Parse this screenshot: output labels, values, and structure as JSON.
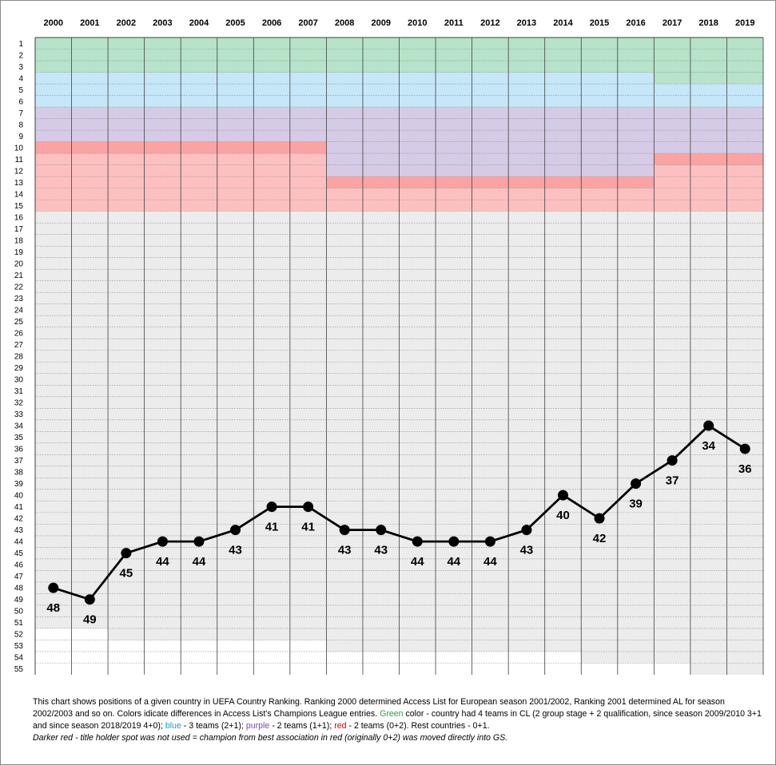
{
  "chart_data": {
    "type": "line",
    "x": [
      "2000",
      "2001",
      "2002",
      "2003",
      "2004",
      "2005",
      "2006",
      "2007",
      "2008",
      "2009",
      "2010",
      "2011",
      "2012",
      "2013",
      "2014",
      "2015",
      "2016",
      "2017",
      "2018",
      "2019"
    ],
    "series": [
      {
        "values": [
          48,
          49,
          45,
          44,
          44,
          43,
          41,
          41,
          43,
          43,
          44,
          44,
          44,
          43,
          40,
          42,
          39,
          37,
          34,
          36
        ]
      }
    ],
    "y_ticks": [
      "1",
      "2",
      "3",
      "4",
      "5",
      "6",
      "7",
      "8",
      "9",
      "10",
      "11",
      "12",
      "13",
      "14",
      "15",
      "16",
      "17",
      "18",
      "19",
      "20",
      "21",
      "22",
      "23",
      "24",
      "25",
      "26",
      "27",
      "28",
      "29",
      "30",
      "31",
      "32",
      "33",
      "34",
      "35",
      "36",
      "37",
      "38",
      "39",
      "40",
      "41",
      "42",
      "43",
      "44",
      "45",
      "46",
      "47",
      "48",
      "49",
      "50",
      "51",
      "52",
      "53",
      "54",
      "55"
    ],
    "ylim": [
      1,
      55
    ],
    "y_inverted": true,
    "grid": true,
    "line_color": "#000000",
    "zones": [
      {
        "name": "green",
        "color": "#b6e3c9",
        "start_year": "2000",
        "end_year": "2016",
        "from_rank": 1,
        "to_rank": 3
      },
      {
        "name": "green",
        "color": "#b6e3c9",
        "start_year": "2017",
        "end_year": "2019",
        "from_rank": 1,
        "to_rank": 4
      },
      {
        "name": "blue",
        "color": "#c6e7f8",
        "start_year": "2000",
        "end_year": "2016",
        "from_rank": 4,
        "to_rank": 6
      },
      {
        "name": "blue",
        "color": "#c6e7f8",
        "start_year": "2017",
        "end_year": "2019",
        "from_rank": 5,
        "to_rank": 6
      },
      {
        "name": "purple",
        "color": "#d6cbe6",
        "start_year": "2000",
        "end_year": "2007",
        "from_rank": 7,
        "to_rank": 9
      },
      {
        "name": "purple",
        "color": "#d6cbe6",
        "start_year": "2008",
        "end_year": "2016",
        "from_rank": 7,
        "to_rank": 12
      },
      {
        "name": "purple",
        "color": "#d6cbe6",
        "start_year": "2017",
        "end_year": "2019",
        "from_rank": 7,
        "to_rank": 10
      },
      {
        "name": "red",
        "color": "#fdc0c0",
        "start_year": "2000",
        "end_year": "2007",
        "from_rank": 10,
        "to_rank": 15
      },
      {
        "name": "red",
        "color": "#fdc0c0",
        "start_year": "2008",
        "end_year": "2016",
        "from_rank": 13,
        "to_rank": 15
      },
      {
        "name": "red",
        "color": "#fdc0c0",
        "start_year": "2017",
        "end_year": "2019",
        "from_rank": 11,
        "to_rank": 15
      },
      {
        "name": "darker-red",
        "color": "#fba3a3",
        "start_year": "2000",
        "end_year": "2007",
        "from_rank": 10,
        "to_rank": 10
      },
      {
        "name": "darker-red",
        "color": "#fba3a3",
        "start_year": "2008",
        "end_year": "2016",
        "from_rank": 13,
        "to_rank": 13
      },
      {
        "name": "darker-red",
        "color": "#fba3a3",
        "start_year": "2017",
        "end_year": "2019",
        "from_rank": 11,
        "to_rank": 11
      }
    ],
    "gray_zone_color": "#ececec",
    "country_counts": [
      {
        "year": "2000",
        "last_rank": 51
      },
      {
        "year": "2001",
        "last_rank": 51
      },
      {
        "year": "2002",
        "last_rank": 52
      },
      {
        "year": "2003",
        "last_rank": 52
      },
      {
        "year": "2004",
        "last_rank": 52
      },
      {
        "year": "2005",
        "last_rank": 52
      },
      {
        "year": "2006",
        "last_rank": 52
      },
      {
        "year": "2007",
        "last_rank": 52
      },
      {
        "year": "2008",
        "last_rank": 53
      },
      {
        "year": "2009",
        "last_rank": 53
      },
      {
        "year": "2010",
        "last_rank": 53
      },
      {
        "year": "2011",
        "last_rank": 53
      },
      {
        "year": "2012",
        "last_rank": 53
      },
      {
        "year": "2013",
        "last_rank": 53
      },
      {
        "year": "2014",
        "last_rank": 53
      },
      {
        "year": "2015",
        "last_rank": 54
      },
      {
        "year": "2016",
        "last_rank": 54
      },
      {
        "year": "2017",
        "last_rank": 54
      },
      {
        "year": "2018",
        "last_rank": 55
      },
      {
        "year": "2019",
        "last_rank": 55
      }
    ]
  },
  "caption": {
    "part1": "This chart shows positions of a given country in  UEFA Country Ranking. Ranking 2000 determined Access List for European season 2001/2002, Ranking 2001 determined AL for season 2002/2003 and so on.  Colors idicate differences in Access List's Champions League entries.  ",
    "green_word": "Green",
    "part2": " color - country had 4 teams in CL (2 group stage + 2 qualification, since season 2009/2010 3+1 and since season 2018/2019  4+0); ",
    "blue_word": "blue",
    "part3": " - 3 teams  (2+1); ",
    "purple_word": "purple",
    "part4": " - 2 teams (1+1); ",
    "red_word": "red",
    "part5": " - 2 teams (0+2). Rest countries - 0+1.",
    "note": "Darker red - title holder spot was not used = champion from best association in red (originally 0+2) was moved directly  into GS."
  }
}
